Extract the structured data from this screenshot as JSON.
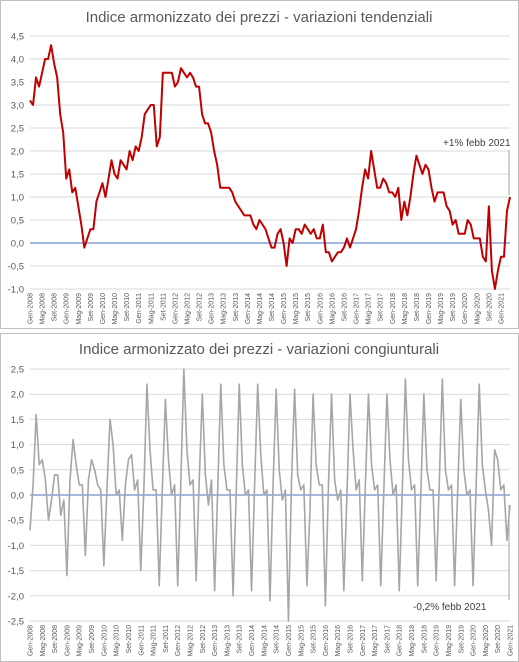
{
  "chart_data": [
    {
      "type": "line",
      "title": "Indice armonizzato dei prezzi - variazioni tendenziali",
      "xlabel": "",
      "ylabel": "",
      "ylim": [
        -1.0,
        4.5
      ],
      "yticks": [
        "4,5",
        "4,0",
        "3,5",
        "3,0",
        "2,5",
        "2,0",
        "1,5",
        "1,0",
        "0,5",
        "0,0",
        "-0,5",
        "-1,0"
      ],
      "xtick_labels": [
        "Gen-2008",
        "Mag-2008",
        "Set-2008",
        "Gen-2009",
        "Mag-2009",
        "Set-2009",
        "Gen-2010",
        "Mag-2010",
        "Set-2010",
        "Gen-2011",
        "Mag-2011",
        "Set-2011",
        "Gen-2012",
        "Mag-2012",
        "Set-2012",
        "Gen-2013",
        "Mag-2013",
        "Set-2013",
        "Gen-2014",
        "Mag-2014",
        "Set-2014",
        "Gen-2015",
        "Mag-2015",
        "Set-2015",
        "Gen-2016",
        "Mag-2016",
        "Set-2016",
        "Gen-2017",
        "Mag-2017",
        "Set-2017",
        "Gen-2018",
        "Mag-2018",
        "Set-2018",
        "Gen-2019",
        "Mag-2019",
        "Set-2019",
        "Gen-2020",
        "Mag-2020",
        "Set-2020",
        "Gen-2021"
      ],
      "grid": true,
      "color": "#c00000",
      "annotation": "+1% febb 2021",
      "series": [
        {
          "values": [
            3.1,
            3.0,
            3.6,
            3.4,
            3.7,
            4.0,
            4.0,
            4.3,
            3.9,
            3.6,
            2.8,
            2.4,
            1.4,
            1.6,
            1.1,
            1.2,
            0.8,
            0.4,
            -0.1,
            0.1,
            0.3,
            0.3,
            0.9,
            1.1,
            1.3,
            1.0,
            1.4,
            1.8,
            1.5,
            1.4,
            1.8,
            1.7,
            1.6,
            2.0,
            1.8,
            2.1,
            2.0,
            2.3,
            2.8,
            2.9,
            3.0,
            3.0,
            2.1,
            2.3,
            3.7,
            3.7,
            3.7,
            3.7,
            3.4,
            3.5,
            3.8,
            3.7,
            3.6,
            3.7,
            3.6,
            3.4,
            3.4,
            2.8,
            2.6,
            2.6,
            2.4,
            2.0,
            1.7,
            1.2,
            1.2,
            1.2,
            1.2,
            1.1,
            0.9,
            0.8,
            0.7,
            0.6,
            0.6,
            0.6,
            0.4,
            0.3,
            0.5,
            0.4,
            0.3,
            0.1,
            -0.1,
            -0.1,
            0.2,
            0.3,
            0.0,
            -0.5,
            0.1,
            0.0,
            0.3,
            0.3,
            0.2,
            0.4,
            0.3,
            0.2,
            0.3,
            0.1,
            0.1,
            0.4,
            -0.2,
            -0.2,
            -0.4,
            -0.3,
            -0.2,
            -0.2,
            -0.1,
            0.1,
            -0.1,
            0.1,
            0.3,
            0.7,
            1.2,
            1.6,
            1.4,
            2.0,
            1.6,
            1.2,
            1.2,
            1.4,
            1.3,
            1.1,
            1.1,
            1.0,
            1.2,
            0.5,
            0.9,
            0.6,
            1.0,
            1.5,
            1.9,
            1.7,
            1.5,
            1.7,
            1.6,
            1.2,
            0.9,
            1.1,
            1.1,
            1.1,
            0.8,
            0.7,
            0.4,
            0.5,
            0.2,
            0.2,
            0.2,
            0.5,
            0.4,
            0.1,
            0.1,
            0.1,
            -0.3,
            -0.4,
            0.8,
            -0.6,
            -1.0,
            -0.6,
            -0.3,
            -0.3,
            0.7,
            1.0
          ]
        }
      ]
    },
    {
      "type": "line",
      "title": "Indice armonizzato dei prezzi - variazioni congiunturali",
      "xlabel": "",
      "ylabel": "",
      "ylim": [
        -2.5,
        2.5
      ],
      "yticks": [
        "2,5",
        "2,0",
        "1,5",
        "1,0",
        "0,5",
        "0,0",
        "-0,5",
        "-1,0",
        "-1,5",
        "-2,0",
        "-2,5"
      ],
      "xtick_labels": [
        "Gen-2008",
        "Mag-2008",
        "Set-2008",
        "Gen-2009",
        "Mag-2009",
        "Set-2009",
        "Gen-2010",
        "Mag-2010",
        "Set-2010",
        "Gen-2011",
        "Mag-2011",
        "Set-2011",
        "Gen-2012",
        "Mag-2012",
        "Set-2012",
        "Gen-2013",
        "Mag-2013",
        "Set-2013",
        "Gen-2014",
        "Mag-2014",
        "Set-2014",
        "Gen-2015",
        "Mag-2015",
        "Set-2015",
        "Gen-2016",
        "Mag-2016",
        "Set-2016",
        "Gen-2017",
        "Mag-2017",
        "Set-2017",
        "Gen-2018",
        "Mag-2018",
        "Set-2018",
        "Gen-2019",
        "Mag-2019",
        "Set-2019",
        "Gen-2020",
        "Mag-2020",
        "Set-2020",
        "Gen-2021"
      ],
      "grid": true,
      "color": "#a6a6a6",
      "annotation": "-0,2% febb 2021",
      "series": [
        {
          "values": [
            -0.7,
            0.2,
            1.6,
            0.6,
            0.7,
            0.3,
            -0.5,
            -0.1,
            0.4,
            0.4,
            -0.4,
            -0.1,
            -1.6,
            0.3,
            1.1,
            0.6,
            0.2,
            0.2,
            -1.2,
            0.3,
            0.7,
            0.5,
            0.2,
            0.1,
            -1.4,
            0.1,
            1.5,
            1.0,
            0.0,
            0.1,
            -0.9,
            0.2,
            0.7,
            0.8,
            0.1,
            0.3,
            -1.5,
            0.1,
            2.2,
            0.9,
            0.1,
            0.1,
            -1.8,
            0.1,
            1.9,
            0.7,
            0.0,
            0.2,
            -1.8,
            0.2,
            2.5,
            0.9,
            0.2,
            0.3,
            -1.7,
            0.3,
            2.0,
            0.4,
            -0.2,
            0.3,
            -1.9,
            0.1,
            2.2,
            0.6,
            0.1,
            0.1,
            -2.0,
            0.0,
            2.2,
            0.6,
            0.0,
            0.1,
            -1.9,
            0.2,
            2.2,
            0.8,
            0.0,
            0.1,
            -2.1,
            0.2,
            2.1,
            0.5,
            -0.1,
            0.1,
            -2.5,
            0.3,
            2.1,
            0.4,
            0.1,
            0.2,
            -1.8,
            -0.3,
            2.0,
            0.6,
            0.2,
            0.2,
            -2.2,
            0.2,
            2.0,
            0.3,
            -0.1,
            0.1,
            -1.9,
            0.0,
            2.0,
            0.9,
            0.1,
            0.3,
            -1.7,
            0.2,
            2.0,
            0.6,
            0.1,
            0.2,
            -1.8,
            0.1,
            2.0,
            0.7,
            0.0,
            0.2,
            -1.9,
            0.1,
            2.3,
            0.7,
            0.1,
            0.2,
            -1.8,
            0.0,
            2.0,
            0.5,
            0.1,
            0.1,
            -1.7,
            0.2,
            2.3,
            0.5,
            0.1,
            0.2,
            -1.8,
            0.1,
            1.9,
            0.5,
            0.0,
            0.1,
            -1.8,
            0.2,
            2.2,
            0.6,
            0.1,
            -0.3,
            -1.0,
            0.9,
            0.7,
            0.1,
            0.2,
            -0.9,
            -0.2
          ]
        }
      ]
    }
  ]
}
